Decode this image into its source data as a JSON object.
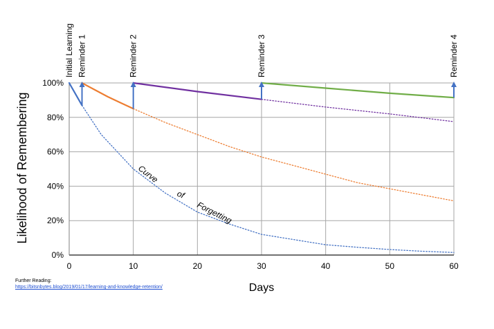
{
  "chart_data": {
    "type": "line",
    "xlabel": "Days",
    "ylabel": "Likelihood of Remembering",
    "xlim": [
      0,
      60
    ],
    "ylim": [
      0,
      100
    ],
    "x_ticks": [
      "0",
      "10",
      "20",
      "30",
      "40",
      "50",
      "60"
    ],
    "y_ticks": [
      "0%",
      "20%",
      "40%",
      "60%",
      "80%",
      "100%"
    ],
    "grid": true,
    "reminders": [
      {
        "label": "Initial Learning",
        "x": 0
      },
      {
        "label": "Reminder 1",
        "x": 2
      },
      {
        "label": "Reminder 2",
        "x": 10
      },
      {
        "label": "Reminder 3",
        "x": 30
      },
      {
        "label": "Reminder 4",
        "x": 60
      }
    ],
    "series": [
      {
        "color": "#4472c4",
        "style": "solid",
        "points": [
          [
            0,
            100
          ],
          [
            2,
            87
          ]
        ]
      },
      {
        "color": "#4472c4",
        "style": "dotted",
        "points": [
          [
            2,
            87
          ],
          [
            5,
            70
          ],
          [
            10,
            50
          ],
          [
            15,
            36
          ],
          [
            20,
            25
          ],
          [
            25,
            18
          ],
          [
            30,
            12
          ],
          [
            35,
            9
          ],
          [
            40,
            6
          ],
          [
            45,
            4.5
          ],
          [
            50,
            3.2
          ],
          [
            55,
            2.2
          ],
          [
            60,
            1.5
          ]
        ]
      },
      {
        "color": "#ed7d31",
        "style": "solid",
        "points": [
          [
            2,
            100
          ],
          [
            4,
            96
          ],
          [
            6,
            92
          ],
          [
            8,
            88.5
          ],
          [
            10,
            85
          ]
        ]
      },
      {
        "color": "#ed7d31",
        "style": "dotted",
        "points": [
          [
            10,
            85
          ],
          [
            15,
            77
          ],
          [
            20,
            70
          ],
          [
            25,
            63
          ],
          [
            30,
            57
          ],
          [
            35,
            52
          ],
          [
            40,
            47
          ],
          [
            45,
            42
          ],
          [
            50,
            38.5
          ],
          [
            55,
            35
          ],
          [
            60,
            31.5
          ]
        ]
      },
      {
        "color": "#7030a0",
        "style": "solid",
        "points": [
          [
            10,
            100
          ],
          [
            20,
            95
          ],
          [
            30,
            90.5
          ]
        ]
      },
      {
        "color": "#7030a0",
        "style": "dotted",
        "points": [
          [
            30,
            90.5
          ],
          [
            40,
            86
          ],
          [
            50,
            82
          ],
          [
            60,
            77.5
          ]
        ]
      },
      {
        "color": "#70ad47",
        "style": "solid",
        "points": [
          [
            30,
            100
          ],
          [
            40,
            97
          ],
          [
            50,
            94
          ],
          [
            60,
            91.5
          ]
        ]
      }
    ],
    "arrows": [
      {
        "x": 2,
        "from": 87,
        "to": 100
      },
      {
        "x": 10,
        "from": 85,
        "to": 100
      },
      {
        "x": 30,
        "from": 90.5,
        "to": 100
      },
      {
        "x": 60,
        "from": 91.5,
        "to": 100
      }
    ],
    "annotation_words": [
      "Curve",
      "of",
      "Forgetting"
    ]
  },
  "footer": {
    "heading": "Further Reading:",
    "link": "https://bitsnbytes.blog/2019/01/17/learning-and-knowledge-retention/"
  }
}
